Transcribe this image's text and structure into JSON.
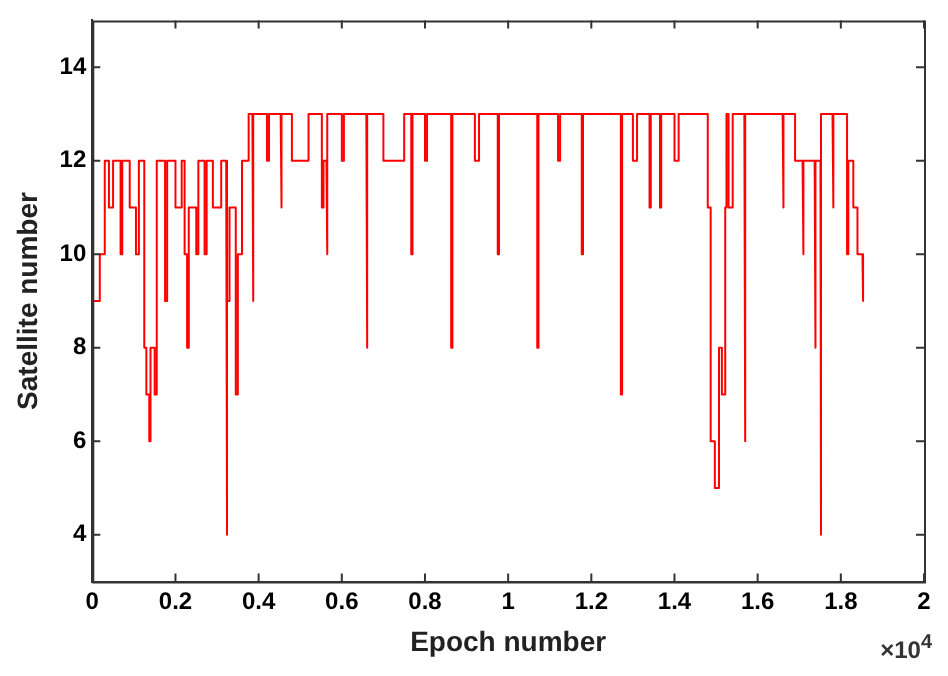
{
  "chart_data": {
    "type": "line",
    "xlabel": "Epoch number",
    "ylabel": "Satellite number",
    "annotations": [
      "×10$^{4}$"
    ],
    "xlim": [
      0,
      2
    ],
    "xticks": [
      0,
      0.2,
      0.4,
      0.6,
      0.8,
      1,
      1.2,
      1.4,
      1.6,
      1.8,
      2
    ],
    "ylim": [
      3,
      15
    ],
    "yticks": [
      4,
      6,
      8,
      10,
      12,
      14
    ],
    "grid": false,
    "legend": false,
    "marker": "none",
    "line_style": "solid",
    "series": [
      {
        "color": "#ff0000",
        "x": [
          0,
          0.018,
          0.018,
          0.03,
          0.03,
          0.04,
          0.04,
          0.05,
          0.05,
          0.068,
          0.068,
          0.072,
          0.072,
          0.09,
          0.09,
          0.105,
          0.105,
          0.112,
          0.112,
          0.125,
          0.125,
          0.13,
          0.13,
          0.137,
          0.137,
          0.14,
          0.14,
          0.15,
          0.15,
          0.155,
          0.155,
          0.175,
          0.175,
          0.18,
          0.18,
          0.2,
          0.2,
          0.215,
          0.215,
          0.222,
          0.222,
          0.228,
          0.228,
          0.232,
          0.232,
          0.25,
          0.25,
          0.255,
          0.255,
          0.27,
          0.27,
          0.275,
          0.275,
          0.29,
          0.29,
          0.31,
          0.31,
          0.322,
          0.322,
          0.325,
          0.325,
          0.33,
          0.33,
          0.345,
          0.345,
          0.35,
          0.35,
          0.36,
          0.36,
          0.376,
          0.376,
          0.385,
          0.385,
          0.388,
          0.388,
          0.42,
          0.42,
          0.425,
          0.425,
          0.453,
          0.453,
          0.456,
          0.456,
          0.48,
          0.48,
          0.52,
          0.52,
          0.552,
          0.552,
          0.556,
          0.556,
          0.563,
          0.563,
          0.566,
          0.566,
          0.6,
          0.6,
          0.605,
          0.605,
          0.659,
          0.659,
          0.662,
          0.662,
          0.7,
          0.7,
          0.75,
          0.75,
          0.767,
          0.767,
          0.77,
          0.77,
          0.8,
          0.8,
          0.805,
          0.805,
          0.863,
          0.863,
          0.866,
          0.866,
          0.92,
          0.92,
          0.93,
          0.93,
          0.975,
          0.975,
          0.978,
          0.978,
          1.07,
          1.07,
          1.073,
          1.073,
          1.12,
          1.12,
          1.125,
          1.125,
          1.177,
          1.177,
          1.18,
          1.18,
          1.271,
          1.271,
          1.274,
          1.274,
          1.3,
          1.3,
          1.31,
          1.31,
          1.34,
          1.34,
          1.343,
          1.343,
          1.365,
          1.365,
          1.368,
          1.368,
          1.4,
          1.4,
          1.41,
          1.41,
          1.48,
          1.48,
          1.487,
          1.487,
          1.497,
          1.497,
          1.507,
          1.507,
          1.514,
          1.514,
          1.522,
          1.522,
          1.525,
          1.525,
          1.53,
          1.53,
          1.54,
          1.54,
          1.568,
          1.568,
          1.571,
          1.571,
          1.66,
          1.66,
          1.663,
          1.663,
          1.69,
          1.69,
          1.708,
          1.708,
          1.711,
          1.711,
          1.737,
          1.737,
          1.74,
          1.74,
          1.751,
          1.751,
          1.753,
          1.753,
          1.78,
          1.78,
          1.783,
          1.783,
          1.815,
          1.815,
          1.818,
          1.818,
          1.83,
          1.83,
          1.84,
          1.84,
          1.852,
          1.852,
          1.855
        ],
        "values": [
          9,
          9,
          10,
          10,
          12,
          12,
          11,
          11,
          12,
          12,
          10,
          10,
          12,
          12,
          11,
          11,
          10,
          10,
          12,
          12,
          8,
          8,
          7,
          7,
          6,
          6,
          8,
          8,
          7,
          7,
          12,
          12,
          9,
          9,
          12,
          12,
          11,
          11,
          12,
          12,
          10,
          10,
          8,
          8,
          11,
          11,
          10,
          10,
          12,
          12,
          10,
          10,
          12,
          12,
          11,
          11,
          12,
          12,
          4,
          4,
          9,
          9,
          11,
          11,
          7,
          7,
          10,
          10,
          12,
          12,
          13,
          13,
          9,
          9,
          13,
          13,
          12,
          12,
          13,
          13,
          11,
          11,
          13,
          13,
          12,
          12,
          13,
          13,
          11,
          11,
          12,
          12,
          10,
          10,
          13,
          13,
          12,
          12,
          13,
          13,
          8,
          8,
          13,
          13,
          12,
          12,
          13,
          13,
          10,
          10,
          13,
          13,
          12,
          12,
          13,
          13,
          8,
          8,
          13,
          13,
          12,
          12,
          13,
          13,
          10,
          10,
          13,
          13,
          8,
          8,
          13,
          13,
          12,
          12,
          13,
          13,
          10,
          10,
          13,
          13,
          7,
          7,
          13,
          13,
          12,
          12,
          13,
          13,
          11,
          11,
          13,
          13,
          11,
          11,
          13,
          13,
          12,
          12,
          13,
          13,
          11,
          11,
          6,
          6,
          5,
          5,
          8,
          8,
          7,
          7,
          11,
          11,
          13,
          13,
          11,
          11,
          13,
          13,
          6,
          6,
          13,
          13,
          11,
          11,
          13,
          13,
          12,
          12,
          10,
          10,
          12,
          12,
          8,
          8,
          12,
          12,
          4,
          4,
          13,
          13,
          11,
          11,
          13,
          13,
          10,
          10,
          12,
          12,
          11,
          11,
          10,
          10,
          9,
          9
        ]
      }
    ]
  }
}
